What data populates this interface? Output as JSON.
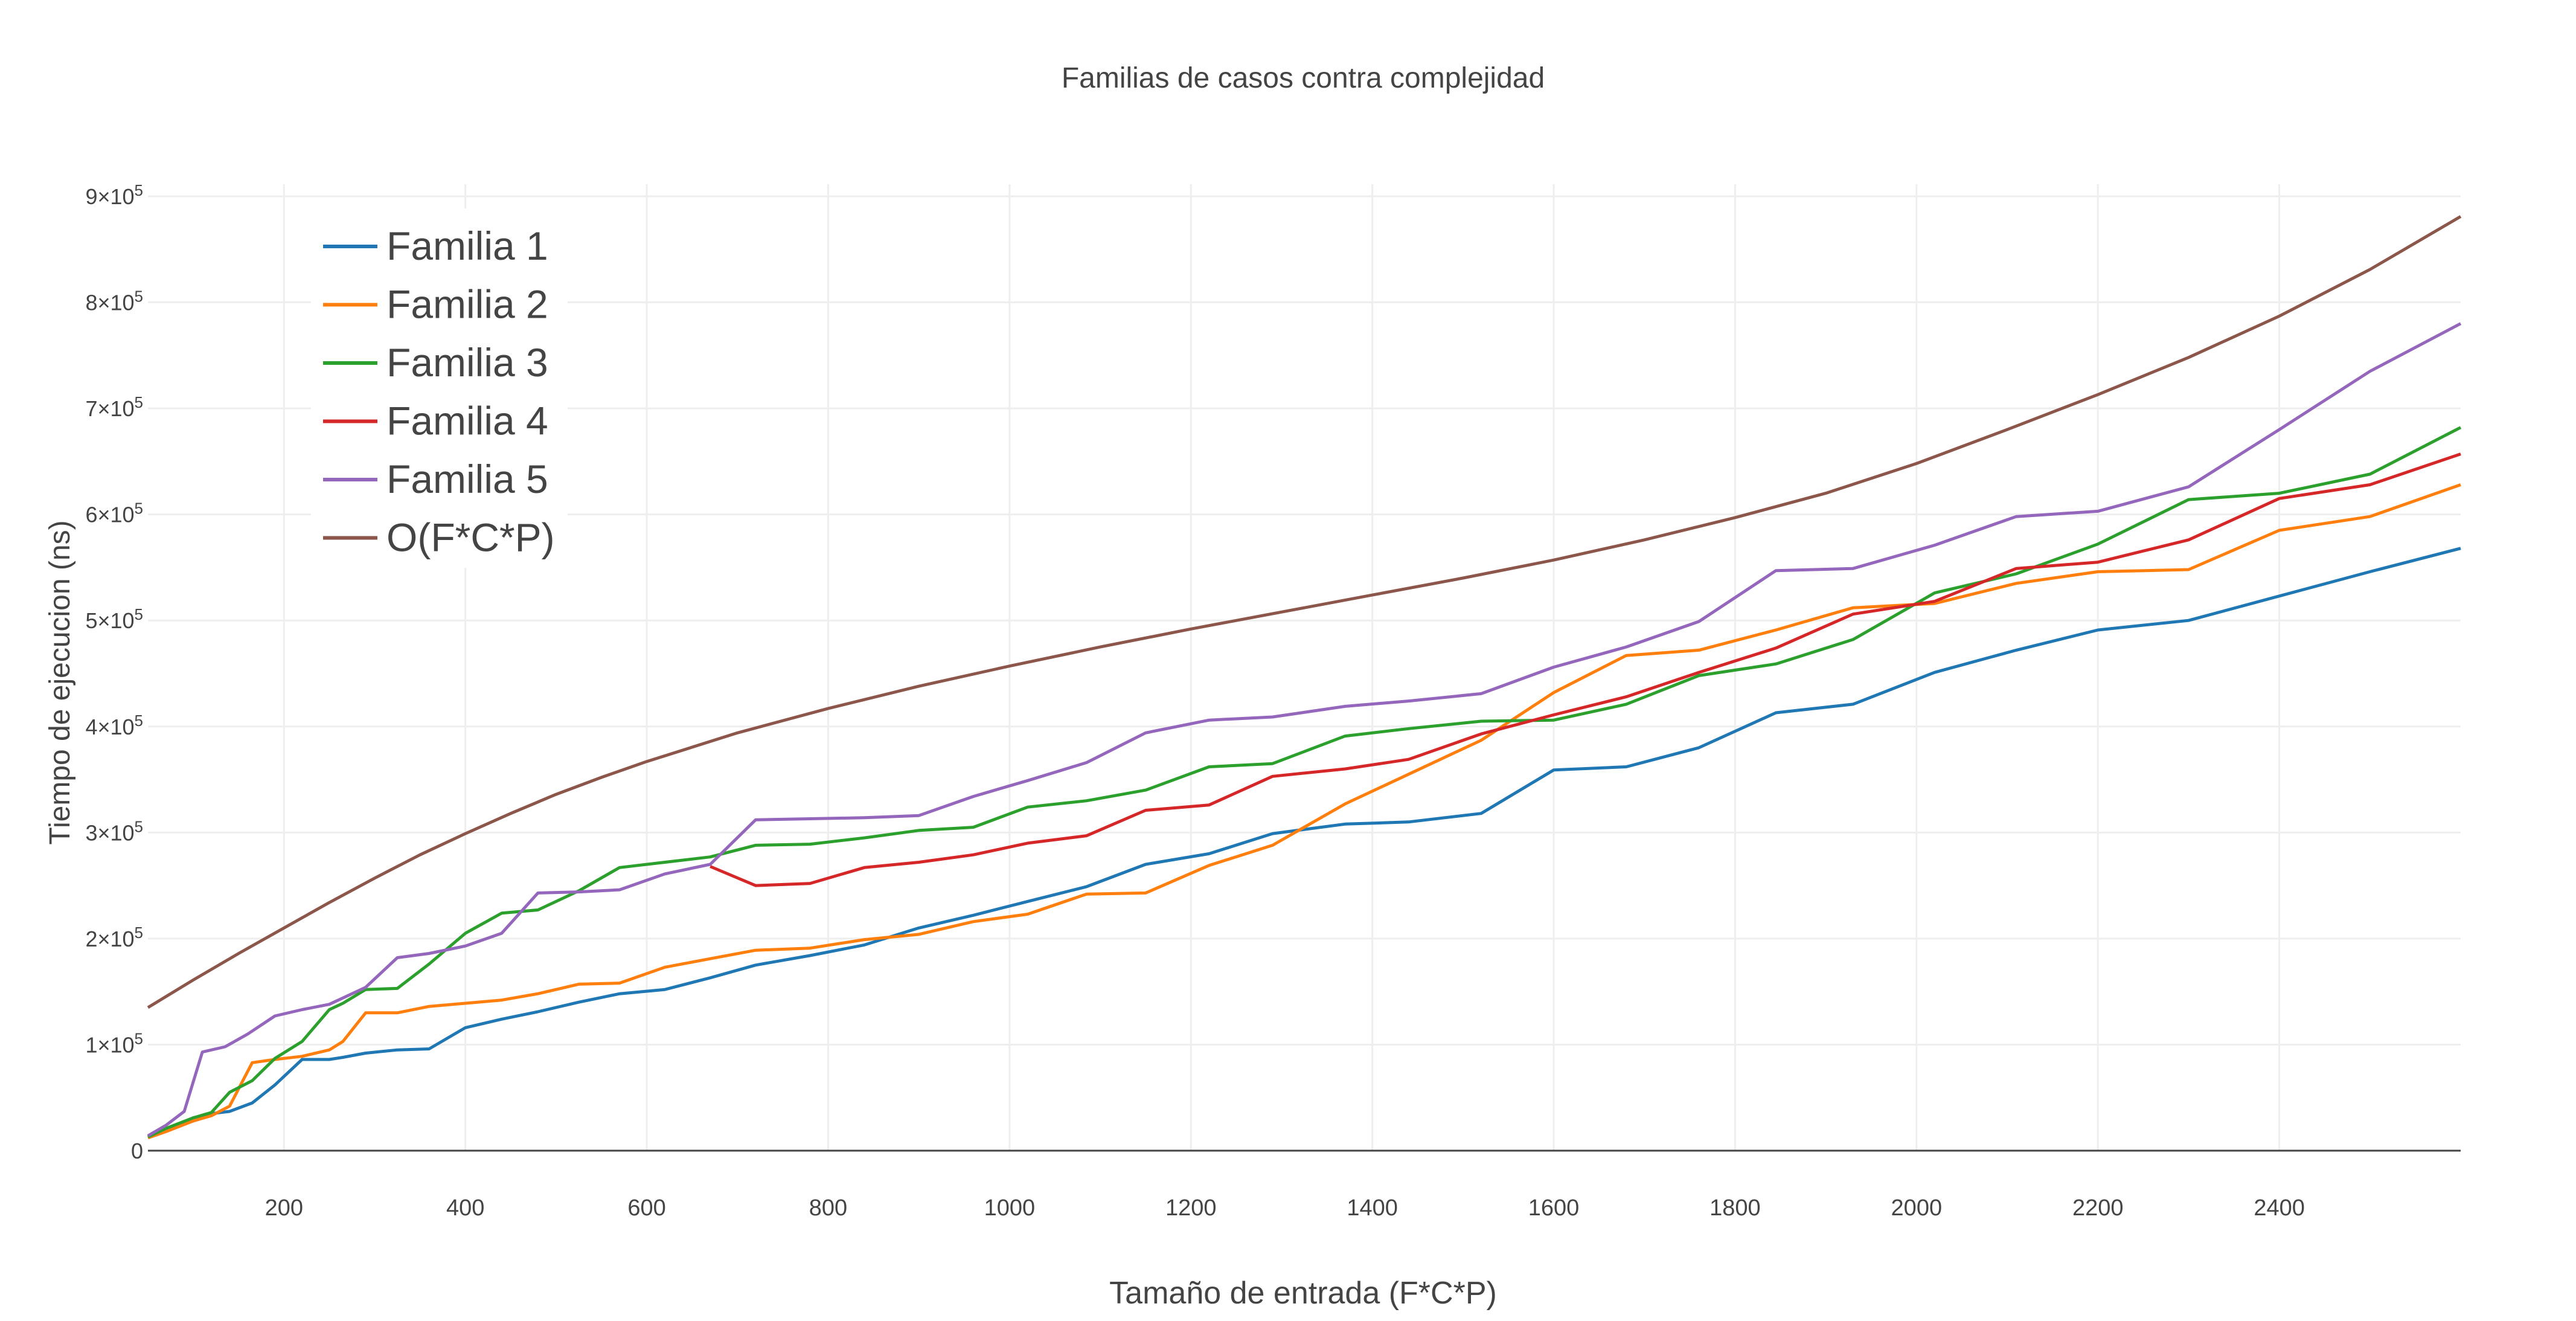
{
  "chart_data": {
    "type": "line",
    "title": "Familias de casos contra complejidad",
    "xlabel": "Tamaño de entrada (F*C*P)",
    "ylabel": "Tiempo de ejecucion (ns)",
    "xlim": [
      50,
      2600
    ],
    "ylim": [
      0,
      900000
    ],
    "x_ticks": [
      200,
      400,
      600,
      800,
      1000,
      1200,
      1400,
      1600,
      1800,
      2000,
      2200,
      2400
    ],
    "y_ticks": [
      {
        "value": 0,
        "label": "0",
        "exp": ""
      },
      {
        "value": 100000,
        "label": "1×10",
        "exp": "5"
      },
      {
        "value": 200000,
        "label": "2×10",
        "exp": "5"
      },
      {
        "value": 300000,
        "label": "3×10",
        "exp": "5"
      },
      {
        "value": 400000,
        "label": "4×10",
        "exp": "5"
      },
      {
        "value": 500000,
        "label": "5×10",
        "exp": "5"
      },
      {
        "value": 600000,
        "label": "6×10",
        "exp": "5"
      },
      {
        "value": 700000,
        "label": "7×10",
        "exp": "5"
      },
      {
        "value": 800000,
        "label": "8×10",
        "exp": "5"
      },
      {
        "value": 900000,
        "label": "9×10",
        "exp": "5"
      }
    ],
    "grid": true,
    "legend_position": "top-left",
    "series": [
      {
        "name": "Familia 1",
        "color": "#1f77b4",
        "points": [
          [
            50,
            13000
          ],
          [
            70,
            20000
          ],
          [
            100,
            31000
          ],
          [
            120,
            35000
          ],
          [
            140,
            37000
          ],
          [
            165,
            45000
          ],
          [
            190,
            62000
          ],
          [
            220,
            86000
          ],
          [
            250,
            86000
          ],
          [
            265,
            88000
          ],
          [
            290,
            92000
          ],
          [
            325,
            95000
          ],
          [
            360,
            96000
          ],
          [
            400,
            116000
          ],
          [
            440,
            124000
          ],
          [
            480,
            131000
          ],
          [
            525,
            140000
          ],
          [
            570,
            148000
          ],
          [
            620,
            152000
          ],
          [
            670,
            163000
          ],
          [
            720,
            175000
          ],
          [
            780,
            184000
          ],
          [
            840,
            194000
          ],
          [
            900,
            210000
          ],
          [
            960,
            222000
          ],
          [
            1020,
            235000
          ],
          [
            1085,
            249000
          ],
          [
            1150,
            270000
          ],
          [
            1220,
            280000
          ],
          [
            1290,
            299000
          ],
          [
            1370,
            308000
          ],
          [
            1440,
            310000
          ],
          [
            1520,
            318000
          ],
          [
            1600,
            359000
          ],
          [
            1680,
            362000
          ],
          [
            1760,
            380000
          ],
          [
            1845,
            413000
          ],
          [
            1930,
            421000
          ],
          [
            2020,
            451000
          ],
          [
            2110,
            472000
          ],
          [
            2200,
            491000
          ],
          [
            2300,
            500000
          ],
          [
            2400,
            523000
          ],
          [
            2500,
            546000
          ],
          [
            2600,
            568000
          ]
        ]
      },
      {
        "name": "Familia 2",
        "color": "#ff7f0e",
        "points": [
          [
            50,
            12000
          ],
          [
            70,
            18000
          ],
          [
            100,
            28000
          ],
          [
            120,
            33000
          ],
          [
            140,
            42000
          ],
          [
            165,
            83000
          ],
          [
            190,
            86000
          ],
          [
            220,
            89000
          ],
          [
            250,
            95000
          ],
          [
            265,
            103000
          ],
          [
            290,
            130000
          ],
          [
            325,
            130000
          ],
          [
            360,
            136000
          ],
          [
            400,
            139000
          ],
          [
            440,
            142000
          ],
          [
            480,
            148000
          ],
          [
            525,
            157000
          ],
          [
            570,
            158000
          ],
          [
            620,
            173000
          ],
          [
            670,
            181000
          ],
          [
            720,
            189000
          ],
          [
            780,
            191000
          ],
          [
            840,
            199000
          ],
          [
            900,
            204000
          ],
          [
            960,
            216000
          ],
          [
            1020,
            223000
          ],
          [
            1085,
            242000
          ],
          [
            1150,
            243000
          ],
          [
            1220,
            269000
          ],
          [
            1290,
            288000
          ],
          [
            1370,
            327000
          ],
          [
            1440,
            355000
          ],
          [
            1520,
            387000
          ],
          [
            1600,
            432000
          ],
          [
            1680,
            467000
          ],
          [
            1760,
            472000
          ],
          [
            1845,
            491000
          ],
          [
            1930,
            512000
          ],
          [
            2020,
            516000
          ],
          [
            2110,
            535000
          ],
          [
            2200,
            546000
          ],
          [
            2300,
            548000
          ],
          [
            2400,
            585000
          ],
          [
            2500,
            598000
          ],
          [
            2600,
            628000
          ]
        ]
      },
      {
        "name": "Familia 3",
        "color": "#2ca02c",
        "points": [
          [
            50,
            13000
          ],
          [
            70,
            21000
          ],
          [
            100,
            31000
          ],
          [
            120,
            36000
          ],
          [
            140,
            55000
          ],
          [
            165,
            66000
          ],
          [
            190,
            87000
          ],
          [
            220,
            103000
          ],
          [
            250,
            133000
          ],
          [
            265,
            139000
          ],
          [
            290,
            152000
          ],
          [
            325,
            153000
          ],
          [
            360,
            176000
          ],
          [
            400,
            205000
          ],
          [
            440,
            224000
          ],
          [
            480,
            227000
          ],
          [
            525,
            245000
          ],
          [
            570,
            267000
          ],
          [
            620,
            272000
          ],
          [
            670,
            277000
          ],
          [
            720,
            288000
          ],
          [
            780,
            289000
          ],
          [
            840,
            295000
          ],
          [
            900,
            302000
          ],
          [
            960,
            305000
          ],
          [
            1020,
            324000
          ],
          [
            1085,
            330000
          ],
          [
            1150,
            340000
          ],
          [
            1220,
            362000
          ],
          [
            1290,
            365000
          ],
          [
            1370,
            391000
          ],
          [
            1440,
            398000
          ],
          [
            1520,
            405000
          ],
          [
            1600,
            406000
          ],
          [
            1680,
            421000
          ],
          [
            1760,
            448000
          ],
          [
            1845,
            459000
          ],
          [
            1930,
            482000
          ],
          [
            2020,
            526000
          ],
          [
            2110,
            544000
          ],
          [
            2200,
            572000
          ],
          [
            2300,
            614000
          ],
          [
            2400,
            620000
          ],
          [
            2500,
            638000
          ],
          [
            2600,
            682000
          ]
        ]
      },
      {
        "name": "Familia 4",
        "color": "#d62728",
        "points": [
          [
            670,
            268000
          ],
          [
            720,
            250000
          ],
          [
            780,
            252000
          ],
          [
            840,
            267000
          ],
          [
            900,
            272000
          ],
          [
            960,
            279000
          ],
          [
            1020,
            290000
          ],
          [
            1085,
            297000
          ],
          [
            1150,
            321000
          ],
          [
            1220,
            326000
          ],
          [
            1290,
            353000
          ],
          [
            1370,
            360000
          ],
          [
            1440,
            369000
          ],
          [
            1520,
            393000
          ],
          [
            1600,
            411000
          ],
          [
            1680,
            428000
          ],
          [
            1760,
            451000
          ],
          [
            1845,
            474000
          ],
          [
            1930,
            506000
          ],
          [
            2020,
            518000
          ],
          [
            2110,
            549000
          ],
          [
            2200,
            555000
          ],
          [
            2300,
            576000
          ],
          [
            2400,
            615000
          ],
          [
            2500,
            628000
          ],
          [
            2600,
            657000
          ]
        ]
      },
      {
        "name": "Familia 5",
        "color": "#9467bd",
        "points": [
          [
            50,
            14000
          ],
          [
            70,
            24000
          ],
          [
            90,
            37000
          ],
          [
            110,
            93000
          ],
          [
            135,
            98000
          ],
          [
            160,
            110000
          ],
          [
            190,
            127000
          ],
          [
            220,
            133000
          ],
          [
            250,
            138000
          ],
          [
            290,
            154000
          ],
          [
            325,
            182000
          ],
          [
            360,
            186000
          ],
          [
            400,
            193000
          ],
          [
            440,
            205000
          ],
          [
            480,
            243000
          ],
          [
            525,
            244000
          ],
          [
            570,
            246000
          ],
          [
            620,
            261000
          ],
          [
            670,
            270000
          ],
          [
            720,
            312000
          ],
          [
            780,
            313000
          ],
          [
            840,
            314000
          ],
          [
            900,
            316000
          ],
          [
            960,
            334000
          ],
          [
            1020,
            349000
          ],
          [
            1085,
            366000
          ],
          [
            1150,
            394000
          ],
          [
            1220,
            406000
          ],
          [
            1290,
            409000
          ],
          [
            1370,
            419000
          ],
          [
            1440,
            424000
          ],
          [
            1520,
            431000
          ],
          [
            1600,
            456000
          ],
          [
            1680,
            475000
          ],
          [
            1760,
            499000
          ],
          [
            1845,
            547000
          ],
          [
            1930,
            549000
          ],
          [
            2020,
            571000
          ],
          [
            2110,
            598000
          ],
          [
            2200,
            603000
          ],
          [
            2300,
            626000
          ],
          [
            2400,
            680000
          ],
          [
            2500,
            735000
          ],
          [
            2600,
            780000
          ]
        ]
      },
      {
        "name": "O(F*C*P)",
        "color": "#8c564b",
        "points": [
          [
            50,
            135000
          ],
          [
            100,
            161000
          ],
          [
            150,
            186000
          ],
          [
            200,
            210000
          ],
          [
            250,
            234000
          ],
          [
            300,
            257000
          ],
          [
            350,
            279000
          ],
          [
            400,
            299000
          ],
          [
            450,
            318000
          ],
          [
            500,
            336000
          ],
          [
            550,
            352000
          ],
          [
            600,
            367000
          ],
          [
            700,
            394000
          ],
          [
            800,
            417000
          ],
          [
            900,
            438000
          ],
          [
            1000,
            457000
          ],
          [
            1100,
            475000
          ],
          [
            1200,
            492000
          ],
          [
            1300,
            508000
          ],
          [
            1400,
            524000
          ],
          [
            1500,
            540000
          ],
          [
            1600,
            557000
          ],
          [
            1700,
            576000
          ],
          [
            1800,
            597000
          ],
          [
            1900,
            620000
          ],
          [
            2000,
            648000
          ],
          [
            2100,
            680000
          ],
          [
            2200,
            713000
          ],
          [
            2300,
            748000
          ],
          [
            2400,
            787000
          ],
          [
            2500,
            831000
          ],
          [
            2600,
            881000
          ]
        ]
      }
    ]
  }
}
